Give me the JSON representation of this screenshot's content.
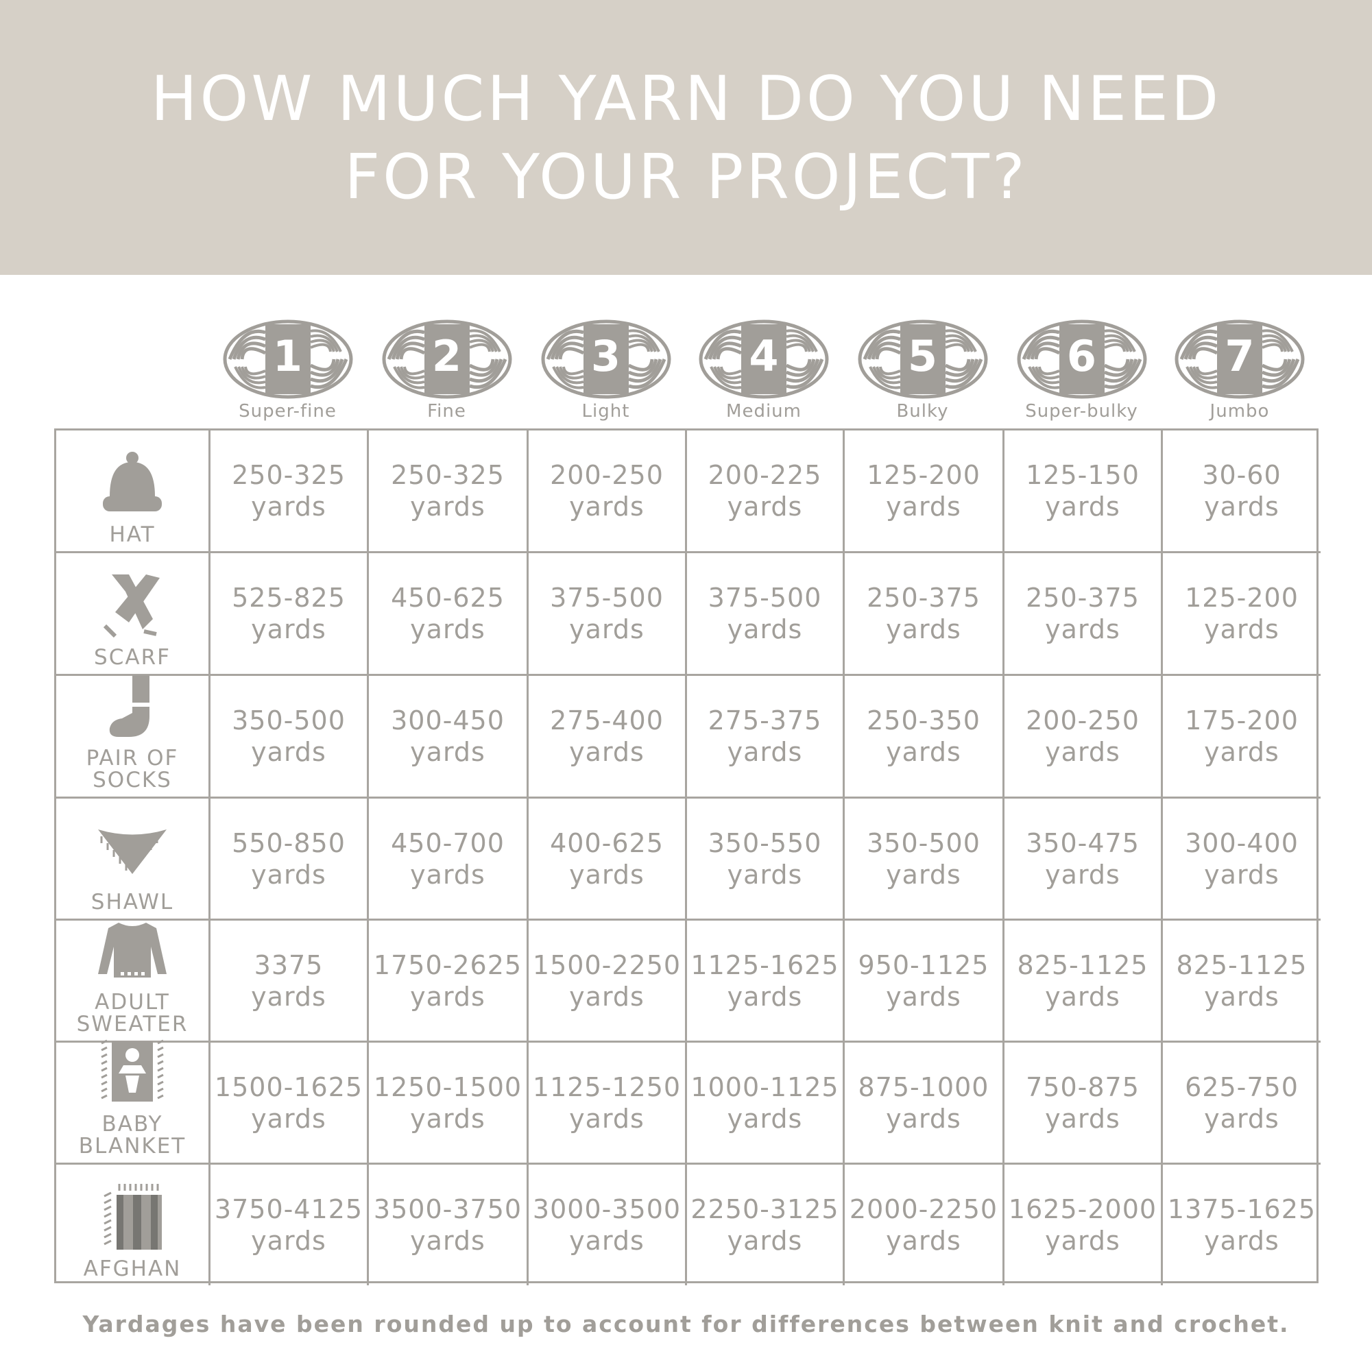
{
  "title": {
    "line1": "HOW MUCH YARN DO YOU NEED",
    "line2": "FOR YOUR PROJECT?"
  },
  "colors": {
    "banner": "#d6d0c7",
    "text": "#a19e99",
    "border": "#a8a5a0",
    "title": "#ffffff"
  },
  "weights": [
    {
      "number": "1",
      "label": "Super-fine"
    },
    {
      "number": "2",
      "label": "Fine"
    },
    {
      "number": "3",
      "label": "Light"
    },
    {
      "number": "4",
      "label": "Medium"
    },
    {
      "number": "5",
      "label": "Bulky"
    },
    {
      "number": "6",
      "label": "Super-bulky"
    },
    {
      "number": "7",
      "label": "Jumbo"
    }
  ],
  "unit": "yards",
  "projects": [
    {
      "label": [
        "HAT"
      ],
      "icon": "hat-icon",
      "values": [
        "250-325",
        "250-325",
        "200-250",
        "200-225",
        "125-200",
        "125-150",
        "30-60"
      ]
    },
    {
      "label": [
        "SCARF"
      ],
      "icon": "scarf-icon",
      "values": [
        "525-825",
        "450-625",
        "375-500",
        "375-500",
        "250-375",
        "250-375",
        "125-200"
      ]
    },
    {
      "label": [
        "PAIR OF",
        "SOCKS"
      ],
      "icon": "sock-icon",
      "values": [
        "350-500",
        "300-450",
        "275-400",
        "275-375",
        "250-350",
        "200-250",
        "175-200"
      ]
    },
    {
      "label": [
        "SHAWL"
      ],
      "icon": "shawl-icon",
      "values": [
        "550-850",
        "450-700",
        "400-625",
        "350-550",
        "350-500",
        "350-475",
        "300-400"
      ]
    },
    {
      "label": [
        "ADULT",
        "SWEATER"
      ],
      "icon": "sweater-icon",
      "values": [
        "3375",
        "1750-2625",
        "1500-2250",
        "1125-1625",
        "950-1125",
        "825-1125",
        "825-1125"
      ]
    },
    {
      "label": [
        "BABY",
        "BLANKET"
      ],
      "icon": "baby-blanket-icon",
      "values": [
        "1500-1625",
        "1250-1500",
        "1125-1250",
        "1000-1125",
        "875-1000",
        "750-875",
        "625-750"
      ]
    },
    {
      "label": [
        "AFGHAN"
      ],
      "icon": "afghan-icon",
      "values": [
        "3750-4125",
        "3500-3750",
        "3000-3500",
        "2250-3125",
        "2000-2250",
        "1625-2000",
        "1375-1625"
      ]
    }
  ],
  "footer": "Yardages have been rounded up to account for differences between knit and crochet."
}
